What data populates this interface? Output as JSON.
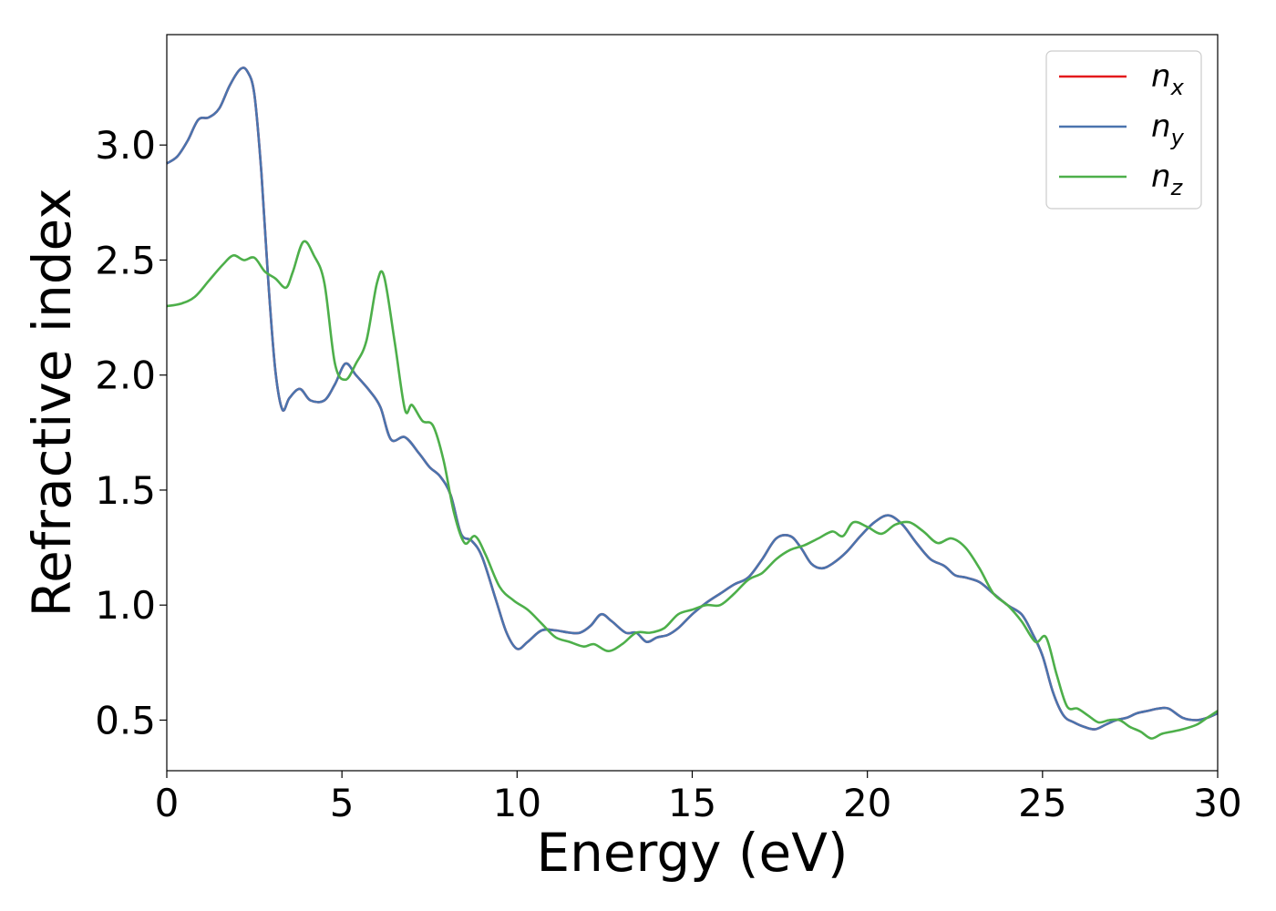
{
  "chart_data": {
    "type": "line",
    "xlabel": "Energy (eV)",
    "ylabel": "Refractive index",
    "xlim": [
      0,
      30
    ],
    "ylim": [
      0.28,
      3.48
    ],
    "xticks": [
      0,
      5,
      10,
      15,
      20,
      25,
      30
    ],
    "xtick_labels": [
      "0",
      "5",
      "10",
      "15",
      "20",
      "25",
      "30"
    ],
    "yticks": [
      0.5,
      1.0,
      1.5,
      2.0,
      2.5,
      3.0
    ],
    "ytick_labels": [
      "0.5",
      "1.0",
      "1.5",
      "2.0",
      "2.5",
      "3.0"
    ],
    "grid": false,
    "legend_position": "top-right",
    "series": [
      {
        "name": "n",
        "subscript": "x",
        "color": "#e41a1c",
        "x": [
          0,
          0.3,
          0.6,
          0.9,
          1.2,
          1.5,
          1.8,
          2.1,
          2.3,
          2.5,
          2.7,
          2.9,
          3.1,
          3.3,
          3.5,
          3.8,
          4.1,
          4.5,
          4.8,
          5.1,
          5.4,
          5.8,
          6.1,
          6.4,
          6.8,
          7.2,
          7.5,
          7.8,
          8.1,
          8.4,
          8.7,
          9,
          9.4,
          9.7,
          10,
          10.3,
          10.7,
          11.1,
          11.5,
          11.8,
          12.1,
          12.4,
          12.7,
          13.1,
          13.4,
          13.7,
          14,
          14.3,
          14.6,
          15,
          15.4,
          15.8,
          16.2,
          16.6,
          17,
          17.4,
          17.8,
          18.1,
          18.4,
          18.7,
          19,
          19.4,
          19.8,
          20.2,
          20.6,
          21,
          21.4,
          21.8,
          22.2,
          22.5,
          22.8,
          23.2,
          23.6,
          24,
          24.4,
          24.7,
          25,
          25.3,
          25.6,
          25.9,
          26.2,
          26.5,
          26.8,
          27.1,
          27.4,
          27.7,
          28,
          28.3,
          28.6,
          29,
          29.4,
          29.7,
          30
        ],
        "y": [
          2.92,
          2.95,
          3.02,
          3.11,
          3.12,
          3.16,
          3.26,
          3.33,
          3.32,
          3.22,
          2.88,
          2.4,
          2.02,
          1.85,
          1.9,
          1.94,
          1.89,
          1.89,
          1.96,
          2.05,
          2.0,
          1.93,
          1.86,
          1.72,
          1.73,
          1.66,
          1.6,
          1.56,
          1.48,
          1.31,
          1.28,
          1.21,
          1.02,
          0.88,
          0.81,
          0.84,
          0.89,
          0.89,
          0.88,
          0.88,
          0.91,
          0.96,
          0.93,
          0.88,
          0.88,
          0.84,
          0.86,
          0.87,
          0.9,
          0.96,
          1.01,
          1.05,
          1.09,
          1.12,
          1.2,
          1.29,
          1.3,
          1.25,
          1.18,
          1.16,
          1.18,
          1.23,
          1.3,
          1.36,
          1.39,
          1.35,
          1.27,
          1.2,
          1.17,
          1.13,
          1.12,
          1.1,
          1.05,
          1.0,
          0.96,
          0.88,
          0.78,
          0.62,
          0.52,
          0.49,
          0.47,
          0.46,
          0.48,
          0.5,
          0.51,
          0.53,
          0.54,
          0.55,
          0.55,
          0.51,
          0.5,
          0.51,
          0.53
        ]
      },
      {
        "name": "n",
        "subscript": "y",
        "color": "#4a74ae",
        "x": [
          0,
          0.3,
          0.6,
          0.9,
          1.2,
          1.5,
          1.8,
          2.1,
          2.3,
          2.5,
          2.7,
          2.9,
          3.1,
          3.3,
          3.5,
          3.8,
          4.1,
          4.5,
          4.8,
          5.1,
          5.4,
          5.8,
          6.1,
          6.4,
          6.8,
          7.2,
          7.5,
          7.8,
          8.1,
          8.4,
          8.7,
          9,
          9.4,
          9.7,
          10,
          10.3,
          10.7,
          11.1,
          11.5,
          11.8,
          12.1,
          12.4,
          12.7,
          13.1,
          13.4,
          13.7,
          14,
          14.3,
          14.6,
          15,
          15.4,
          15.8,
          16.2,
          16.6,
          17,
          17.4,
          17.8,
          18.1,
          18.4,
          18.7,
          19,
          19.4,
          19.8,
          20.2,
          20.6,
          21,
          21.4,
          21.8,
          22.2,
          22.5,
          22.8,
          23.2,
          23.6,
          24,
          24.4,
          24.7,
          25,
          25.3,
          25.6,
          25.9,
          26.2,
          26.5,
          26.8,
          27.1,
          27.4,
          27.7,
          28,
          28.3,
          28.6,
          29,
          29.4,
          29.7,
          30
        ],
        "y": [
          2.92,
          2.95,
          3.02,
          3.11,
          3.12,
          3.16,
          3.26,
          3.33,
          3.32,
          3.22,
          2.88,
          2.4,
          2.02,
          1.85,
          1.9,
          1.94,
          1.89,
          1.89,
          1.96,
          2.05,
          2.0,
          1.93,
          1.86,
          1.72,
          1.73,
          1.66,
          1.6,
          1.56,
          1.48,
          1.31,
          1.28,
          1.21,
          1.02,
          0.88,
          0.81,
          0.84,
          0.89,
          0.89,
          0.88,
          0.88,
          0.91,
          0.96,
          0.93,
          0.88,
          0.88,
          0.84,
          0.86,
          0.87,
          0.9,
          0.96,
          1.01,
          1.05,
          1.09,
          1.12,
          1.2,
          1.29,
          1.3,
          1.25,
          1.18,
          1.16,
          1.18,
          1.23,
          1.3,
          1.36,
          1.39,
          1.35,
          1.27,
          1.2,
          1.17,
          1.13,
          1.12,
          1.1,
          1.05,
          1.0,
          0.96,
          0.88,
          0.78,
          0.62,
          0.52,
          0.49,
          0.47,
          0.46,
          0.48,
          0.5,
          0.51,
          0.53,
          0.54,
          0.55,
          0.55,
          0.51,
          0.5,
          0.51,
          0.53
        ]
      },
      {
        "name": "n",
        "subscript": "z",
        "color": "#4daf4a",
        "x": [
          0,
          0.4,
          0.8,
          1.2,
          1.6,
          1.9,
          2.2,
          2.5,
          2.8,
          3.1,
          3.4,
          3.6,
          3.9,
          4.2,
          4.5,
          4.8,
          5.1,
          5.4,
          5.7,
          6.0,
          6.2,
          6.5,
          6.8,
          7.0,
          7.3,
          7.6,
          7.9,
          8.2,
          8.5,
          8.8,
          9.1,
          9.5,
          9.9,
          10.3,
          10.7,
          11.1,
          11.5,
          11.9,
          12.2,
          12.6,
          13,
          13.4,
          13.8,
          14.2,
          14.6,
          15,
          15.4,
          15.8,
          16.2,
          16.6,
          17,
          17.4,
          17.8,
          18.2,
          18.6,
          19,
          19.3,
          19.6,
          20,
          20.4,
          20.8,
          21.2,
          21.6,
          22,
          22.4,
          22.8,
          23.2,
          23.6,
          24,
          24.4,
          24.8,
          25.1,
          25.4,
          25.7,
          26,
          26.3,
          26.6,
          26.9,
          27.2,
          27.5,
          27.8,
          28.1,
          28.4,
          28.7,
          29,
          29.4,
          29.7,
          30
        ],
        "y": [
          2.3,
          2.31,
          2.34,
          2.41,
          2.48,
          2.52,
          2.5,
          2.51,
          2.45,
          2.42,
          2.38,
          2.45,
          2.58,
          2.52,
          2.4,
          2.05,
          1.98,
          2.05,
          2.15,
          2.4,
          2.43,
          2.15,
          1.85,
          1.87,
          1.8,
          1.78,
          1.63,
          1.4,
          1.27,
          1.3,
          1.22,
          1.08,
          1.02,
          0.98,
          0.92,
          0.86,
          0.84,
          0.82,
          0.83,
          0.8,
          0.83,
          0.88,
          0.88,
          0.9,
          0.96,
          0.98,
          1.0,
          1.0,
          1.05,
          1.11,
          1.14,
          1.2,
          1.24,
          1.26,
          1.29,
          1.32,
          1.3,
          1.36,
          1.34,
          1.31,
          1.35,
          1.36,
          1.32,
          1.27,
          1.29,
          1.25,
          1.16,
          1.05,
          1.0,
          0.93,
          0.84,
          0.86,
          0.7,
          0.56,
          0.55,
          0.52,
          0.49,
          0.5,
          0.5,
          0.47,
          0.45,
          0.42,
          0.44,
          0.45,
          0.46,
          0.48,
          0.51,
          0.54
        ]
      }
    ]
  }
}
